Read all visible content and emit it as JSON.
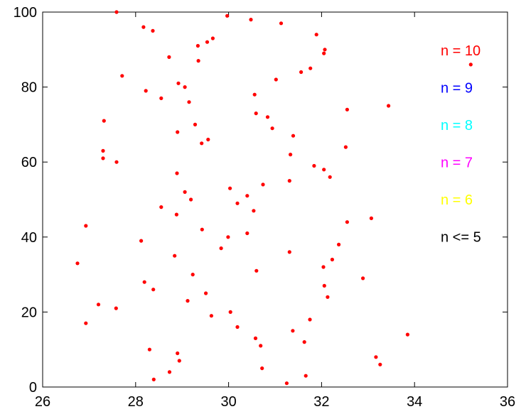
{
  "chart_data": {
    "type": "scatter",
    "title": "",
    "xlabel": "",
    "ylabel": "",
    "xlim": [
      26,
      36
    ],
    "ylim": [
      0,
      100
    ],
    "xticks": [
      "26",
      "28",
      "30",
      "32",
      "34",
      "36"
    ],
    "yticks": [
      "0",
      "20",
      "40",
      "60",
      "80",
      "100"
    ],
    "grid": false,
    "legend_position": "right",
    "point_color": "#ff0000",
    "legend": [
      {
        "label": "n = 10",
        "color": "#ff0000"
      },
      {
        "label": "n = 9",
        "color": "#0000ff"
      },
      {
        "label": "n = 8",
        "color": "#00ffff"
      },
      {
        "label": "n = 7",
        "color": "#ff00ff"
      },
      {
        "label": "n = 6",
        "color": "#ffff00"
      },
      {
        "label": "n <= 5",
        "color": "#000000"
      }
    ],
    "points": [
      [
        27.59,
        100
      ],
      [
        28.17,
        96
      ],
      [
        28.37,
        95
      ],
      [
        29.66,
        93
      ],
      [
        29.54,
        92
      ],
      [
        29.34,
        91
      ],
      [
        29.97,
        99
      ],
      [
        30.48,
        98
      ],
      [
        31.13,
        97
      ],
      [
        31.89,
        94
      ],
      [
        32.07,
        90
      ],
      [
        32.05,
        89
      ],
      [
        28.72,
        88
      ],
      [
        29.35,
        87
      ],
      [
        35.21,
        86
      ],
      [
        31.76,
        85
      ],
      [
        31.56,
        84
      ],
      [
        27.71,
        83
      ],
      [
        31.02,
        82
      ],
      [
        28.92,
        81
      ],
      [
        29.06,
        80
      ],
      [
        28.22,
        79
      ],
      [
        30.56,
        78
      ],
      [
        28.55,
        77
      ],
      [
        29.15,
        76
      ],
      [
        33.44,
        75
      ],
      [
        32.55,
        74
      ],
      [
        30.59,
        73
      ],
      [
        30.84,
        72
      ],
      [
        27.32,
        71
      ],
      [
        29.28,
        70
      ],
      [
        30.94,
        69
      ],
      [
        28.9,
        68
      ],
      [
        31.39,
        67
      ],
      [
        29.56,
        66
      ],
      [
        29.42,
        65
      ],
      [
        32.52,
        64
      ],
      [
        27.3,
        63
      ],
      [
        31.33,
        62
      ],
      [
        27.3,
        61
      ],
      [
        27.59,
        60
      ],
      [
        31.84,
        59
      ],
      [
        32.05,
        58
      ],
      [
        28.89,
        57
      ],
      [
        32.18,
        56
      ],
      [
        31.31,
        55
      ],
      [
        30.74,
        54
      ],
      [
        30.03,
        53
      ],
      [
        29.06,
        52
      ],
      [
        30.4,
        51
      ],
      [
        29.19,
        50
      ],
      [
        30.19,
        49
      ],
      [
        28.55,
        48
      ],
      [
        30.54,
        47
      ],
      [
        28.88,
        46
      ],
      [
        33.07,
        45
      ],
      [
        32.55,
        44
      ],
      [
        26.93,
        43
      ],
      [
        29.43,
        42
      ],
      [
        30.4,
        41
      ],
      [
        29.99,
        40
      ],
      [
        28.12,
        39
      ],
      [
        32.37,
        38
      ],
      [
        29.84,
        37
      ],
      [
        31.31,
        36
      ],
      [
        28.84,
        35
      ],
      [
        32.23,
        34
      ],
      [
        26.75,
        33
      ],
      [
        32.04,
        32
      ],
      [
        30.6,
        31
      ],
      [
        29.23,
        30
      ],
      [
        32.89,
        29
      ],
      [
        28.19,
        28
      ],
      [
        32.06,
        27
      ],
      [
        28.38,
        26
      ],
      [
        29.51,
        25
      ],
      [
        32.13,
        24
      ],
      [
        29.12,
        23
      ],
      [
        27.2,
        22
      ],
      [
        27.58,
        21
      ],
      [
        30.04,
        20
      ],
      [
        29.63,
        19
      ],
      [
        31.75,
        18
      ],
      [
        26.93,
        17
      ],
      [
        30.19,
        16
      ],
      [
        31.38,
        15
      ],
      [
        33.85,
        14
      ],
      [
        30.58,
        13
      ],
      [
        31.63,
        12
      ],
      [
        30.69,
        11
      ],
      [
        28.3,
        10
      ],
      [
        28.9,
        9
      ],
      [
        33.17,
        8
      ],
      [
        28.94,
        7
      ],
      [
        33.26,
        6
      ],
      [
        30.72,
        5
      ],
      [
        28.73,
        4
      ],
      [
        31.66,
        3
      ],
      [
        28.39,
        2
      ],
      [
        31.25,
        1
      ]
    ]
  }
}
